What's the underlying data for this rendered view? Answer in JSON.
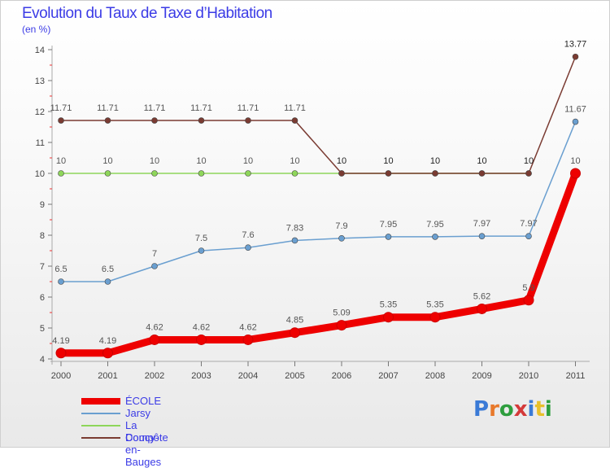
{
  "title": "Evolution du Taux de Taxe d’Habitation",
  "subtitle": "(en %)",
  "logo": {
    "text": "Proxiti",
    "colors": [
      "#3a7ad6",
      "#e8792b",
      "#2e9e3e",
      "#d43a3a",
      "#3a7ad6",
      "#e8c02b",
      "#2e9e3e"
    ]
  },
  "chart_data": {
    "type": "line",
    "title": "Evolution du Taux de Taxe d’Habitation",
    "ylabel": "(en %)",
    "xlabel": "",
    "x": [
      "2000",
      "2001",
      "2002",
      "2003",
      "2004",
      "2005",
      "2006",
      "2007",
      "2008",
      "2009",
      "2010",
      "2011"
    ],
    "ylim": [
      4,
      14
    ],
    "yticks": [
      4,
      5,
      6,
      7,
      8,
      9,
      10,
      11,
      12,
      13,
      14
    ],
    "grid": false,
    "legend_position": "bottom-left",
    "series": [
      {
        "name": "ÉCOLE",
        "color": "#ee0000",
        "values": [
          4.19,
          4.19,
          4.62,
          4.62,
          4.62,
          4.85,
          5.09,
          5.35,
          5.35,
          5.62,
          5.9,
          10
        ],
        "labels": [
          "4.19",
          "4.19",
          "4.62",
          "4.62",
          "4.62",
          "4.85",
          "5.09",
          "5.35",
          "5.35",
          "5.62",
          "5.9",
          "10"
        ]
      },
      {
        "name": "Jarsy",
        "color": "#6a9fd0",
        "values": [
          6.5,
          6.5,
          7,
          7.5,
          7.6,
          7.83,
          7.9,
          7.95,
          7.95,
          7.97,
          7.97,
          11.67
        ],
        "labels": [
          "6.5",
          "6.5",
          "7",
          "7.5",
          "7.6",
          "7.83",
          "7.9",
          "7.95",
          "7.95",
          "7.97",
          "7.97",
          "11.67"
        ]
      },
      {
        "name": "La Compôte",
        "color": "#8ed65a",
        "values": [
          10,
          10,
          10,
          10,
          10,
          10,
          10,
          10,
          10,
          10,
          10,
          null
        ],
        "labels": [
          "10",
          "10",
          "10",
          "10",
          "10",
          "10",
          "",
          "",
          "",
          "",
          "",
          ""
        ]
      },
      {
        "name": "Doucy-en-Bauges",
        "color": "#7a3b32",
        "values": [
          11.71,
          11.71,
          11.71,
          11.71,
          11.71,
          11.71,
          10,
          10,
          10,
          10,
          10,
          13.77
        ],
        "labels": [
          "11.71",
          "11.71",
          "11.71",
          "11.71",
          "11.71",
          "11.71",
          "10",
          "10",
          "10",
          "10",
          "10",
          "13.77"
        ]
      }
    ]
  }
}
